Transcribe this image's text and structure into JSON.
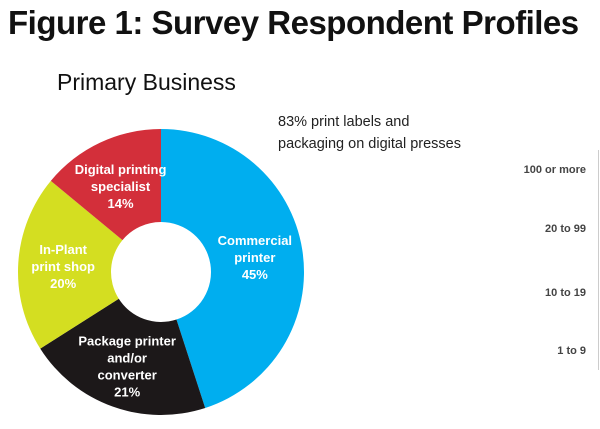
{
  "figure_title": "Figure 1: Survey Respondent Profiles",
  "note": [
    "83% print labels and",
    "packaging on digital presses"
  ],
  "right_axis_labels": [
    "100 or more",
    "20 to 99",
    "10 to 19",
    "1 to 9"
  ],
  "chart_data": {
    "type": "pie",
    "donut": true,
    "title": "Primary Business",
    "slices": [
      {
        "label": [
          "Commercial",
          "printer"
        ],
        "value": 45,
        "value_label": "45%",
        "color": "#00AEEF"
      },
      {
        "label": [
          "Package printer",
          "and/or",
          "converter"
        ],
        "value": 21,
        "value_label": "21%",
        "color": "#1C1819"
      },
      {
        "label": [
          "In-Plant",
          "print shop"
        ],
        "value": 20,
        "value_label": "20%",
        "color": "#D4DE21"
      },
      {
        "label": [
          "Digital printing",
          "specialist"
        ],
        "value": 14,
        "value_label": "14%",
        "color": "#D32F3A"
      }
    ]
  }
}
